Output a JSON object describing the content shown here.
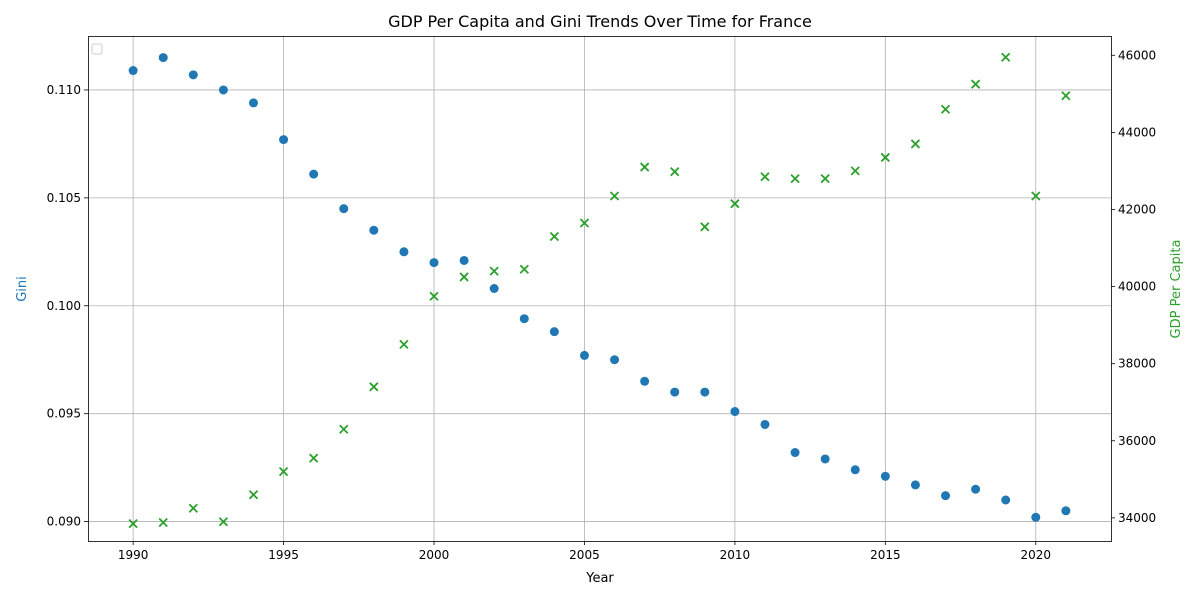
{
  "chart_data": {
    "type": "scatter",
    "title": "GDP Per Capita and Gini Trends Over Time for France",
    "xlabel": "Year",
    "ylabel_left": "Gini",
    "ylabel_right": "GDP Per Capita",
    "xlim": [
      1988.5,
      2022.5
    ],
    "ylim_left": [
      0.0891,
      0.1125
    ],
    "ylim_right": [
      33400,
      46500
    ],
    "x_ticks": [
      1990,
      1995,
      2000,
      2005,
      2010,
      2015,
      2020
    ],
    "x_tick_labels": [
      "1990",
      "1995",
      "2000",
      "2005",
      "2010",
      "2015",
      "2020"
    ],
    "y_left_ticks": [
      0.09,
      0.095,
      0.1,
      0.105,
      0.11
    ],
    "y_left_tick_labels": [
      "0.090",
      "0.095",
      "0.100",
      "0.105",
      "0.110"
    ],
    "y_right_ticks": [
      34000,
      36000,
      38000,
      40000,
      42000,
      44000,
      46000
    ],
    "y_right_tick_labels": [
      "34000",
      "36000",
      "38000",
      "40000",
      "42000",
      "44000",
      "46000"
    ],
    "grid": true,
    "legend_placement": "top-left",
    "x": [
      1990,
      1991,
      1992,
      1993,
      1994,
      1995,
      1996,
      1997,
      1998,
      1999,
      2000,
      2001,
      2002,
      2003,
      2004,
      2005,
      2006,
      2007,
      2008,
      2009,
      2010,
      2011,
      2012,
      2013,
      2014,
      2015,
      2016,
      2017,
      2018,
      2019,
      2020,
      2021
    ],
    "series": [
      {
        "axis": "left",
        "marker": "circle",
        "color": "#1f77b4",
        "values": [
          0.1109,
          0.1115,
          0.1107,
          0.11,
          0.1094,
          0.1077,
          0.1061,
          0.1045,
          0.1035,
          0.1025,
          0.102,
          0.1021,
          0.1008,
          0.0994,
          0.0988,
          0.0977,
          0.0975,
          0.0965,
          0.096,
          0.096,
          0.0951,
          0.0945,
          0.0932,
          0.0929,
          0.0924,
          0.0921,
          0.0917,
          0.0912,
          0.0915,
          0.091,
          0.0902,
          0.0905
        ]
      },
      {
        "axis": "right",
        "marker": "x",
        "color": "#2ca02c",
        "values": [
          33850,
          33880,
          34250,
          33900,
          34600,
          35200,
          35550,
          36300,
          37400,
          38500,
          39750,
          40250,
          40400,
          40450,
          41300,
          41650,
          42350,
          43100,
          42980,
          41550,
          42150,
          42850,
          42800,
          42800,
          43000,
          43350,
          43700,
          44600,
          45250,
          45950,
          42350,
          44950
        ]
      }
    ]
  }
}
